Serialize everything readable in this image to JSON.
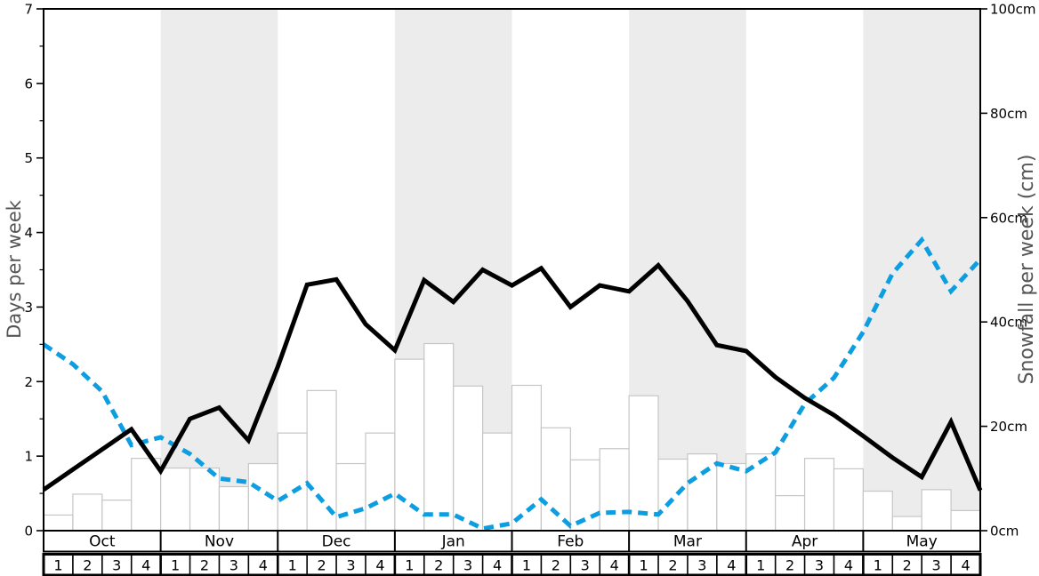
{
  "page": {
    "background": "#ffffff"
  },
  "chart_data": {
    "type": "line",
    "title": "",
    "months": [
      {
        "label": "Oct",
        "shaded": false
      },
      {
        "label": "Nov",
        "shaded": true
      },
      {
        "label": "Dec",
        "shaded": false
      },
      {
        "label": "Jan",
        "shaded": true
      },
      {
        "label": "Feb",
        "shaded": false
      },
      {
        "label": "Mar",
        "shaded": true
      },
      {
        "label": "Apr",
        "shaded": false
      },
      {
        "label": "May",
        "shaded": true
      }
    ],
    "week_labels": [
      "1",
      "2",
      "3",
      "4"
    ],
    "left_axis": {
      "label": "Days per week",
      "min": 0,
      "max": 7,
      "tick_labels": [
        "0",
        "1",
        "2",
        "3",
        "4",
        "5",
        "6",
        "7"
      ],
      "minor_step": 0.5
    },
    "right_axis": {
      "label": "Snowfall per week (cm)",
      "min": 0,
      "max": 100,
      "tick_labels": [
        "0cm",
        "20cm",
        "40cm",
        "60cm",
        "80cm",
        "100cm"
      ]
    },
    "bars": {
      "name": "weekly-bars",
      "axis": "left",
      "values": [
        0.21,
        0.49,
        0.41,
        0.97,
        0.84,
        0.84,
        0.59,
        0.9,
        1.31,
        1.88,
        0.9,
        1.31,
        2.3,
        2.51,
        1.94,
        1.31,
        1.95,
        1.38,
        0.95,
        1.1,
        1.81,
        0.96,
        1.03,
        0.9,
        1.03,
        0.47,
        0.97,
        0.83,
        0.53,
        0.19,
        0.55,
        0.27
      ]
    },
    "series": [
      {
        "name": "snowfall-per-week-cm",
        "axis": "right",
        "color": "#0d9de1",
        "dashed": true,
        "values": [
          35.7,
          31.9,
          26.7,
          16.4,
          17.9,
          14.7,
          10.0,
          9.3,
          5.7,
          9.1,
          2.6,
          4.3,
          7.1,
          3.1,
          3.1,
          0.4,
          1.4,
          6.0,
          0.9,
          3.4,
          3.6,
          3.1,
          9.1,
          12.9,
          11.4,
          15.0,
          24.3,
          29.3,
          38.1,
          49.3,
          55.7,
          45.9,
          52.0
        ]
      },
      {
        "name": "days-per-week",
        "axis": "left",
        "color": "#000000",
        "dashed": false,
        "values": [
          0.55,
          0.82,
          1.09,
          1.36,
          0.8,
          1.5,
          1.65,
          1.21,
          2.2,
          3.3,
          3.37,
          2.77,
          2.42,
          3.36,
          3.07,
          3.5,
          3.29,
          3.52,
          3.0,
          3.29,
          3.21,
          3.56,
          3.08,
          2.49,
          2.41,
          2.06,
          1.78,
          1.55,
          1.27,
          0.98,
          0.72,
          1.46,
          0.54
        ]
      }
    ],
    "colors": {
      "band": "#ececec",
      "bar_fill": "#ffffff",
      "bar_border": "#c6c6c6",
      "axis": "#000000",
      "tick_text": "#000000",
      "axis_title": "#555555"
    },
    "layout": {
      "legend": false,
      "grid": false,
      "points_at": "week-boundaries",
      "weeks_total": 32
    }
  }
}
